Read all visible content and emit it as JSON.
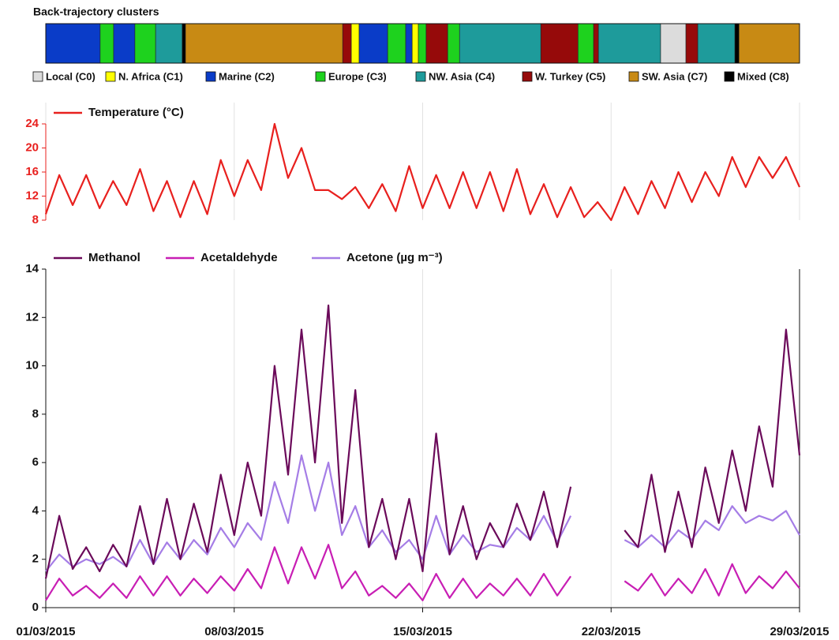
{
  "chart_data": [
    {
      "type": "timeline",
      "title": "Back-trajectory clusters",
      "clusters": [
        {
          "name": "Local (C0)",
          "color": "#dcdcdc"
        },
        {
          "name": "N. Africa (C1)",
          "color": "#ffff00"
        },
        {
          "name": "Marine (C2)",
          "color": "#0a3cc8"
        },
        {
          "name": "Europe (C3)",
          "color": "#1ed21e"
        },
        {
          "name": "NW. Asia (C4)",
          "color": "#1e9b9b"
        },
        {
          "name": "W. Turkey (C5)",
          "color": "#960a0a"
        },
        {
          "name": "SW. Asia (C7)",
          "color": "#c88a14"
        },
        {
          "name": "Mixed (C8)",
          "color": "#000000"
        }
      ],
      "boundaries": [
        0,
        2.02,
        2.52,
        3.31,
        4.08,
        5.07,
        5.19,
        11.03,
        11.35,
        11.64,
        12.7,
        13.37,
        13.61,
        13.84,
        14.13,
        14.93,
        15.37,
        18.39,
        19.77,
        20.35,
        20.53,
        22.84,
        23.78,
        24.22,
        25.6,
        25.75,
        28
      ],
      "segment_clusters": [
        2,
        3,
        2,
        3,
        4,
        7,
        6,
        5,
        1,
        2,
        3,
        2,
        1,
        3,
        5,
        3,
        4,
        5,
        3,
        5,
        4,
        0,
        5,
        4,
        7,
        6
      ],
      "xlim": [
        0,
        28
      ]
    },
    {
      "type": "line",
      "x": [
        0,
        0.5,
        1,
        1.5,
        2,
        2.5,
        3,
        3.5,
        4,
        4.5,
        5,
        5.5,
        6,
        6.5,
        7,
        7.5,
        8,
        8.5,
        9,
        9.5,
        10,
        10.5,
        11,
        11.5,
        12,
        12.5,
        13,
        13.5,
        14,
        14.5,
        15,
        15.5,
        16,
        16.5,
        17,
        17.5,
        18,
        18.5,
        19,
        19.5,
        20,
        20.5,
        21,
        21.5,
        22,
        22.5,
        23,
        23.5,
        24,
        24.5,
        25,
        25.5,
        26,
        26.5,
        27,
        27.5,
        28
      ],
      "series": [
        {
          "name": "Temperature (°C)",
          "color": "#e8201e",
          "values": [
            9,
            15.5,
            10.5,
            15.5,
            10,
            14.5,
            10.5,
            16.5,
            9.5,
            14.5,
            8.5,
            14.5,
            9,
            18,
            12,
            18,
            13,
            24,
            15,
            20,
            13,
            13,
            11.5,
            13.5,
            10,
            14,
            9.5,
            17,
            10,
            15.5,
            10,
            16,
            10,
            16,
            9.5,
            16.5,
            9,
            14,
            8.5,
            13.5,
            8.5,
            11,
            8,
            13.5,
            9,
            14.5,
            10,
            16,
            11,
            16,
            12,
            18.5,
            13.5,
            18.5,
            15,
            18.5,
            13.5
          ]
        }
      ],
      "ylim": [
        8,
        24
      ],
      "yticks": [
        8,
        12,
        16,
        20,
        24
      ]
    },
    {
      "type": "line",
      "x": [
        0,
        0.5,
        1,
        1.5,
        2,
        2.5,
        3,
        3.5,
        4,
        4.5,
        5,
        5.5,
        6,
        6.5,
        7,
        7.5,
        8,
        8.5,
        9,
        9.5,
        10,
        10.5,
        11,
        11.5,
        12,
        12.5,
        13,
        13.5,
        14,
        14.5,
        15,
        15.5,
        16,
        16.5,
        17,
        17.5,
        18,
        18.5,
        19,
        19.5,
        20,
        20.5,
        21,
        21.5,
        22,
        22.5,
        23,
        23.5,
        24,
        24.5,
        25,
        25.5,
        26,
        26.5,
        27,
        27.5,
        28
      ],
      "series": [
        {
          "name": "Methanol",
          "color": "#6b0a5a",
          "values": [
            1.2,
            3.8,
            1.6,
            2.5,
            1.5,
            2.6,
            1.7,
            4.2,
            1.8,
            4.5,
            2.0,
            4.3,
            2.3,
            5.5,
            3.0,
            6.0,
            3.8,
            10,
            5.5,
            11.5,
            6,
            12.5,
            3.5,
            9,
            2.5,
            4.5,
            2,
            4.5,
            1.5,
            7.2,
            2.2,
            4.2,
            2.0,
            3.5,
            2.5,
            4.3,
            2.8,
            4.8,
            2.5,
            5.0,
            null,
            null,
            null,
            3.2,
            2.5,
            5.5,
            2.3,
            4.8,
            2.5,
            5.8,
            3.5,
            6.5,
            4,
            7.5,
            5,
            11.5,
            6.3
          ]
        },
        {
          "name": "Acetaldehyde",
          "color": "#c81eb4",
          "values": [
            0.3,
            1.2,
            0.5,
            0.9,
            0.4,
            1.0,
            0.4,
            1.3,
            0.5,
            1.3,
            0.5,
            1.2,
            0.6,
            1.3,
            0.7,
            1.6,
            0.8,
            2.5,
            1.0,
            2.5,
            1.2,
            2.6,
            0.8,
            1.5,
            0.5,
            0.9,
            0.4,
            1.0,
            0.3,
            1.4,
            0.4,
            1.2,
            0.4,
            1.0,
            0.5,
            1.2,
            0.5,
            1.4,
            0.5,
            1.3,
            null,
            null,
            null,
            1.1,
            0.7,
            1.4,
            0.5,
            1.2,
            0.6,
            1.6,
            0.5,
            1.8,
            0.6,
            1.3,
            0.8,
            1.5,
            0.8
          ]
        },
        {
          "name": "Acetone (µg m⁻³)",
          "color": "#a57de6",
          "values": [
            1.5,
            2.2,
            1.7,
            2.0,
            1.8,
            2.1,
            1.7,
            2.8,
            1.8,
            2.7,
            2.0,
            2.8,
            2.2,
            3.3,
            2.5,
            3.5,
            2.8,
            5.2,
            3.5,
            6.3,
            4,
            6,
            3,
            4.2,
            2.5,
            3.2,
            2.3,
            2.8,
            2.0,
            3.8,
            2.2,
            3.0,
            2.3,
            2.6,
            2.5,
            3.3,
            2.8,
            3.8,
            2.7,
            3.8,
            null,
            null,
            null,
            2.8,
            2.5,
            3.0,
            2.5,
            3.2,
            2.8,
            3.6,
            3.2,
            4.2,
            3.5,
            3.8,
            3.6,
            4.0,
            3.0
          ]
        }
      ],
      "xlim": [
        0,
        28
      ],
      "xticks": [
        {
          "value": 0,
          "label": "01/03/2015"
        },
        {
          "value": 7,
          "label": "08/03/2015"
        },
        {
          "value": 14,
          "label": "15/03/2015"
        },
        {
          "value": 21,
          "label": "22/03/2015"
        },
        {
          "value": 28,
          "label": "29/03/2015"
        }
      ],
      "ylim": [
        0,
        14
      ],
      "yticks": [
        0,
        2,
        4,
        6,
        8,
        10,
        12,
        14
      ]
    }
  ]
}
